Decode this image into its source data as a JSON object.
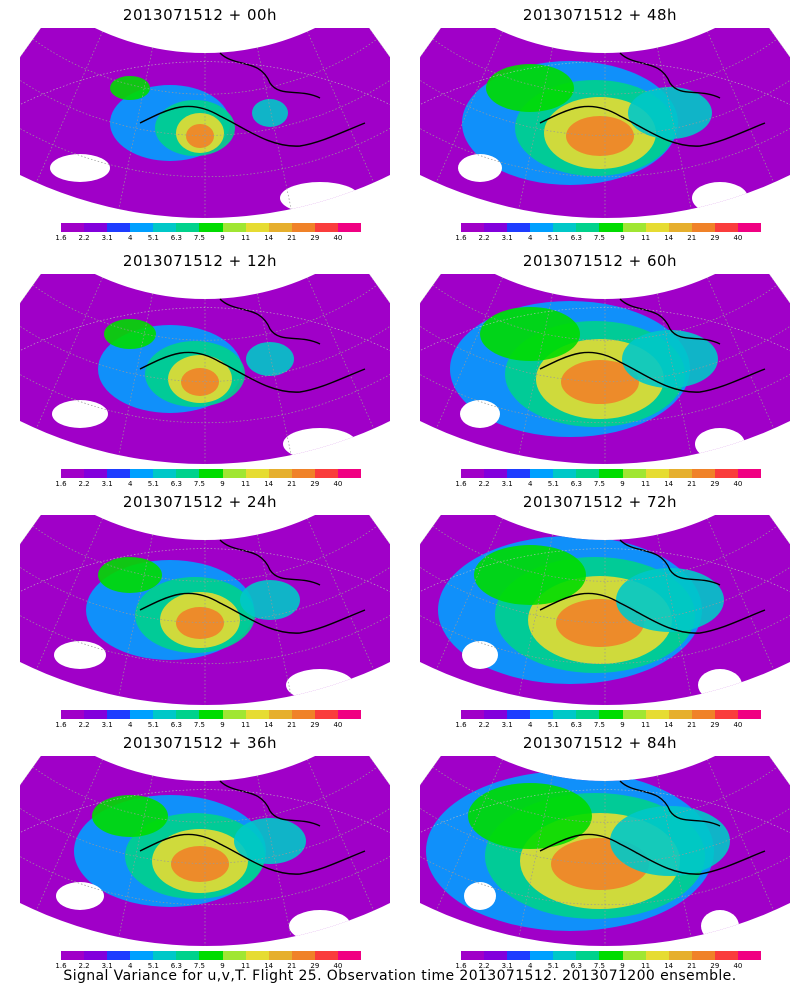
{
  "caption": "Signal Variance for u,v,T. Flight 25. Observation time 2013071512. 2013071200 ensemble.",
  "colorbar": {
    "colors": [
      "#a000c8",
      "#8200dc",
      "#1e3cff",
      "#00a0ff",
      "#00c8c8",
      "#00d28c",
      "#00dc00",
      "#a0e632",
      "#e6dc32",
      "#e6af2d",
      "#f08228",
      "#fa3c3c",
      "#f00082"
    ],
    "labels": [
      "1.6",
      "2.2",
      "3.1",
      "4",
      "5.1",
      "6.3",
      "7.5",
      "9",
      "11",
      "14",
      "21",
      "29",
      "40"
    ]
  },
  "panels": [
    {
      "title": "2013071512 + 00h",
      "level": 0
    },
    {
      "title": "2013071512 + 48h",
      "level": 4
    },
    {
      "title": "2013071512 + 12h",
      "level": 1
    },
    {
      "title": "2013071512 + 60h",
      "level": 5
    },
    {
      "title": "2013071512 + 24h",
      "level": 2
    },
    {
      "title": "2013071512 + 72h",
      "level": 6
    },
    {
      "title": "2013071512 + 36h",
      "level": 3
    },
    {
      "title": "2013071512 + 84h",
      "level": 7
    }
  ]
}
